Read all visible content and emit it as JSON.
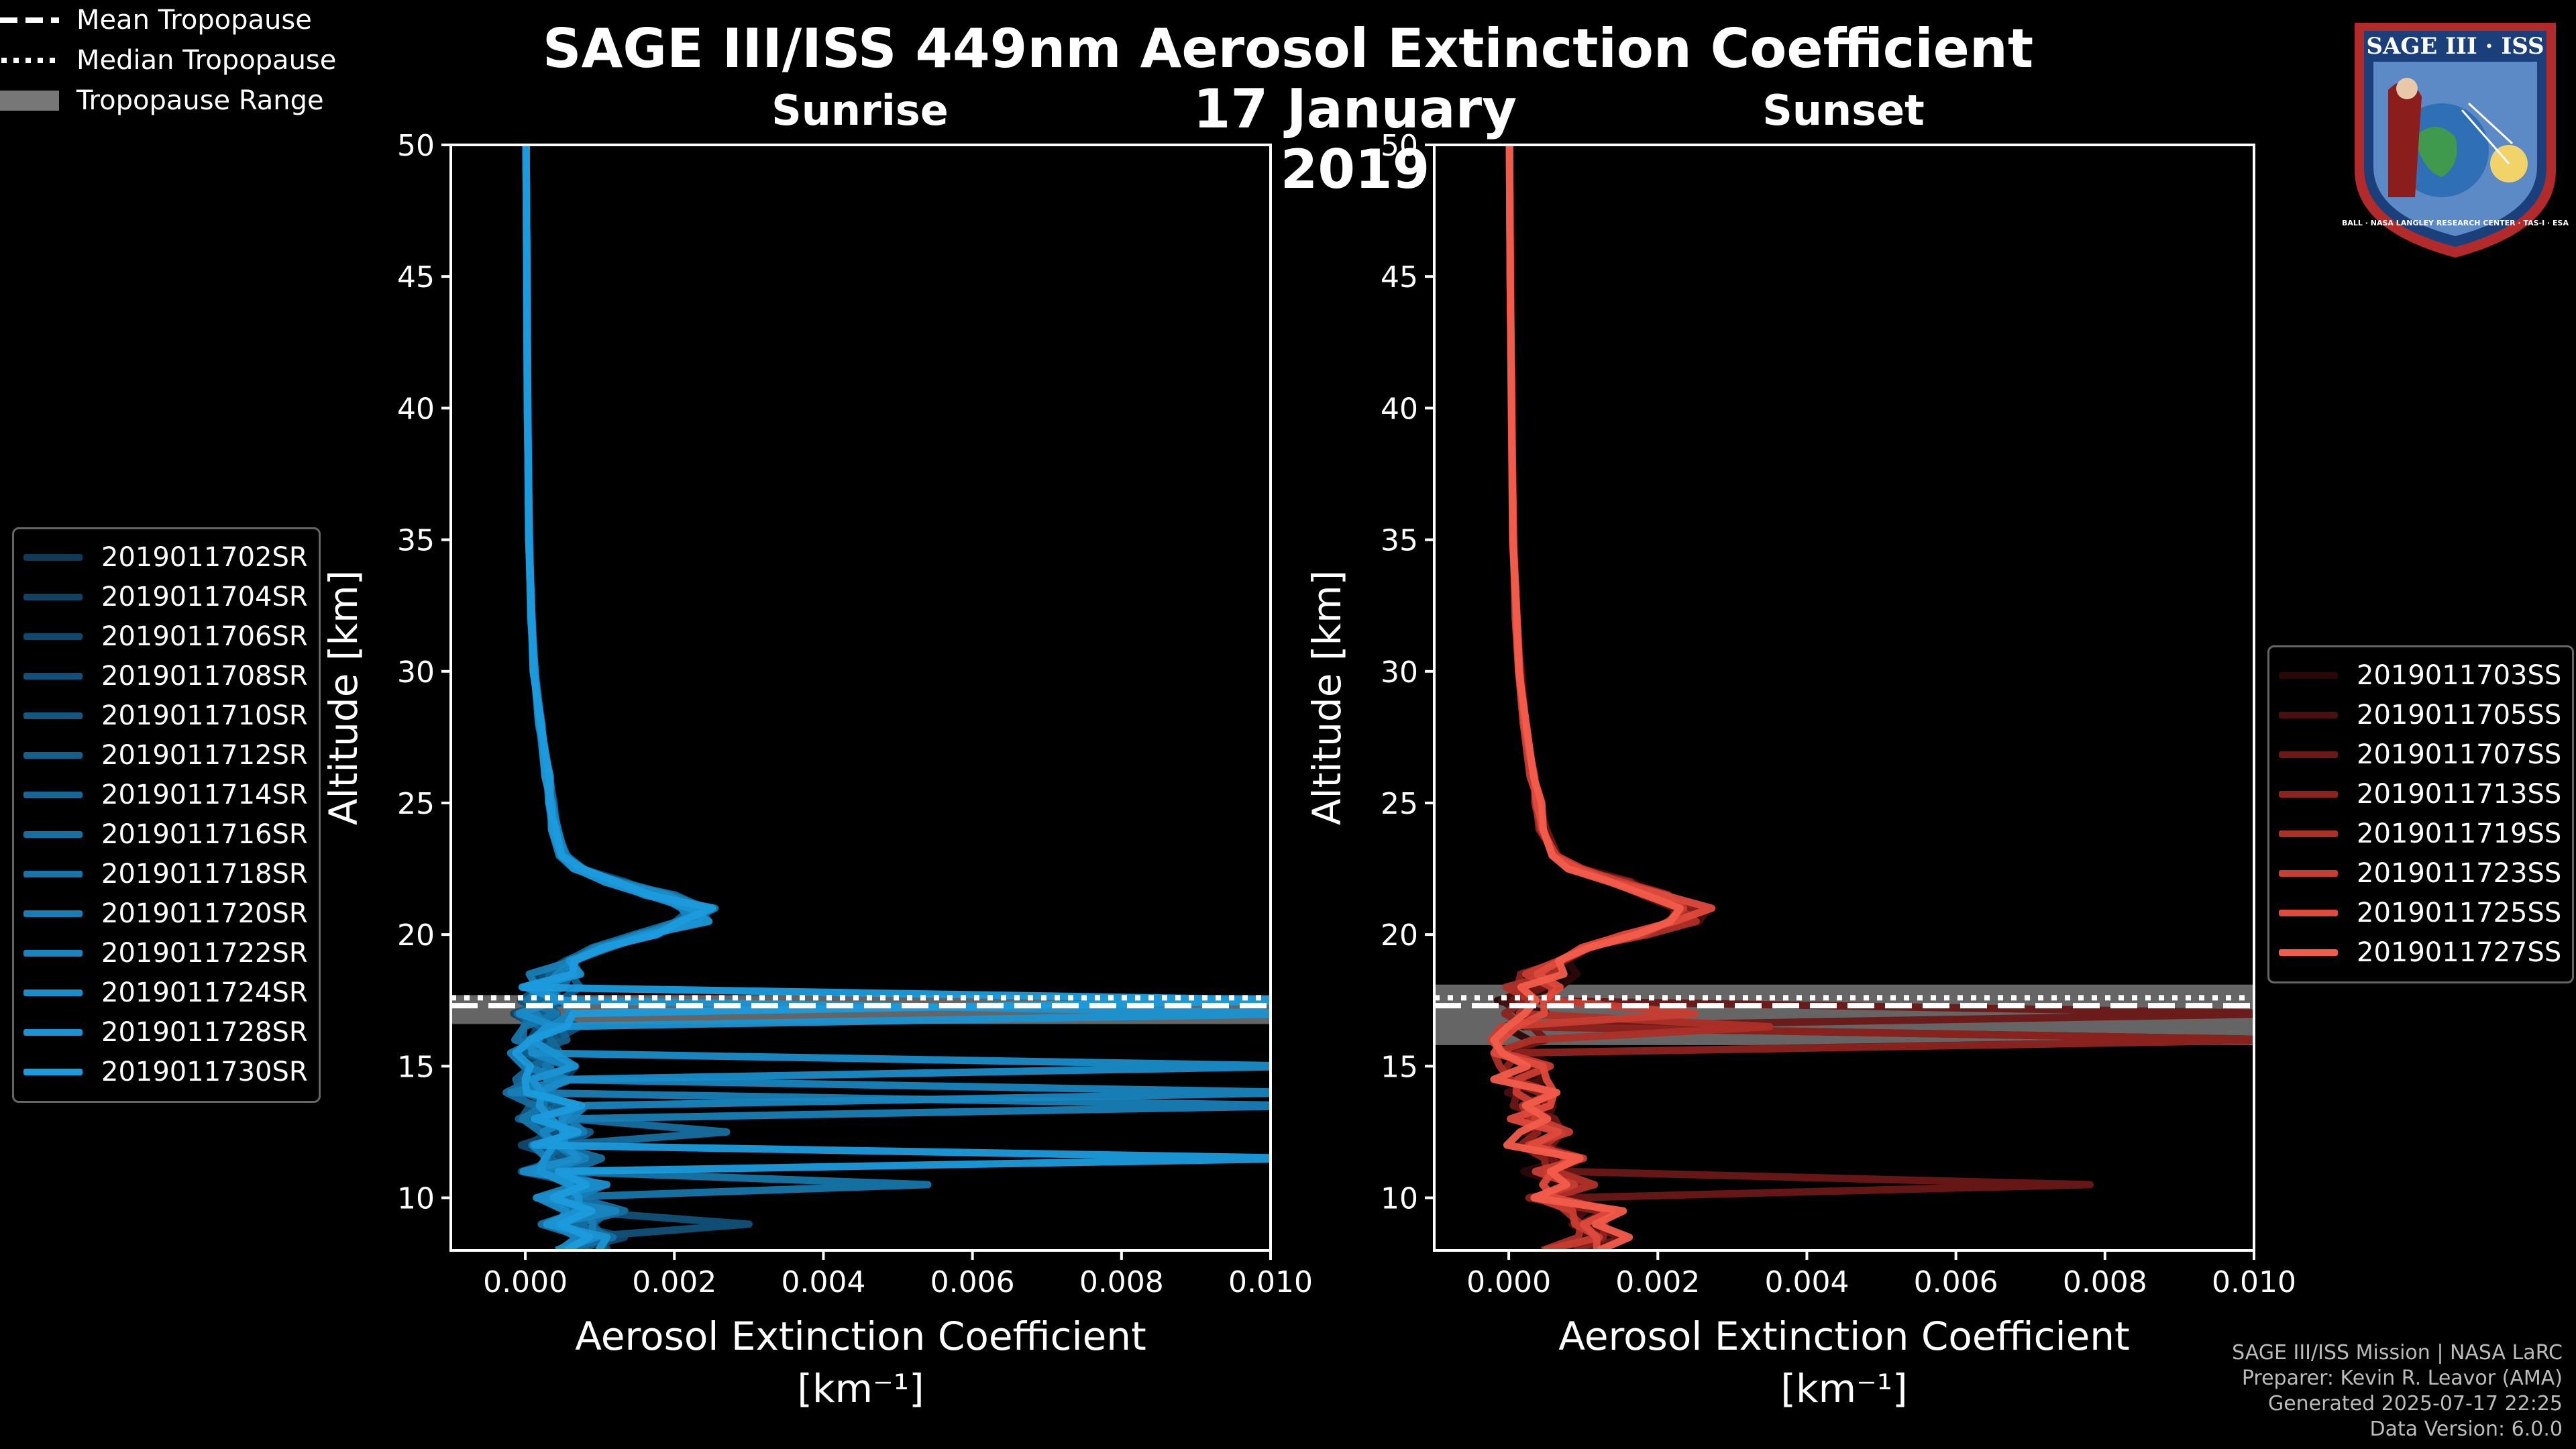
{
  "title": {
    "line1": "SAGE III/ISS 449nm Aerosol Extinction Coefficient",
    "line2": "17 January 2019"
  },
  "logo": {
    "text_top": "SAGE III · ISS",
    "text_ring": "BALL · NASA LANGLEY RESEARCH CENTER · TAS-I · ESA"
  },
  "colors": {
    "background": "#000000",
    "sunrise_series": [
      "#0e3a58",
      "#0f4263",
      "#10496e",
      "#115178",
      "#125882",
      "#13608d",
      "#146797",
      "#156fa1",
      "#1676ab",
      "#177eb5",
      "#1885bf",
      "#198cc9",
      "#1a93d3",
      "#1b9bdd"
    ],
    "sunset_series": [
      "#2a0808",
      "#4a1010",
      "#6b1816",
      "#8c231e",
      "#ad3027",
      "#c83d31",
      "#de4a3c",
      "#f25c4a"
    ],
    "tropopause_range": "#777777"
  },
  "chart_data": [
    {
      "type": "line",
      "panel_title": "Sunrise",
      "xlabel": "Aerosol Extinction Coefficient",
      "xunit": "[km⁻¹]",
      "ylabel": "Altitude [km]",
      "xlim": [
        -0.001,
        0.01
      ],
      "ylim": [
        8,
        50
      ],
      "xticks": [
        0.0,
        0.002,
        0.004,
        0.006,
        0.008,
        0.01
      ],
      "xtick_labels": [
        "0.000",
        "0.002",
        "0.004",
        "0.006",
        "0.008",
        "0.010"
      ],
      "yticks": [
        10,
        15,
        20,
        25,
        30,
        35,
        40,
        45,
        50
      ],
      "tropopause": {
        "mean": 17.3,
        "median": 17.6,
        "range": [
          16.6,
          17.7
        ]
      },
      "series_names": [
        "2019011702SR",
        "2019011704SR",
        "2019011706SR",
        "2019011708SR",
        "2019011710SR",
        "2019011712SR",
        "2019011714SR",
        "2019011716SR",
        "2019011718SR",
        "2019011720SR",
        "2019011722SR",
        "2019011724SR",
        "2019011728SR",
        "2019011730SR"
      ],
      "base_profile": {
        "altitude": [
          50,
          45,
          40,
          35,
          32,
          30,
          28,
          26,
          25,
          24,
          23,
          22.5,
          22,
          21.5,
          21,
          20.5,
          20,
          19.5,
          19,
          18.5,
          18,
          17.5,
          17,
          16.5,
          16,
          15.5,
          15,
          14.5,
          14,
          13.5,
          13,
          12.5,
          12,
          11.5,
          11,
          10.5,
          10,
          9.5,
          9,
          8.5,
          8
        ],
        "value": [
          1e-05,
          2e-05,
          3e-05,
          5e-05,
          8e-05,
          0.00012,
          0.0002,
          0.0003,
          0.00035,
          0.0004,
          0.0005,
          0.0007,
          0.0012,
          0.0018,
          0.0023,
          0.0022,
          0.0016,
          0.001,
          0.0006,
          0.0004,
          0.0003,
          0.0002,
          0.0002,
          0.0003,
          0.0002,
          0.0001,
          0.0003,
          0.0002,
          0.0001,
          0.0004,
          0.0002,
          0.0005,
          0.0003,
          0.0006,
          0.0003,
          0.0007,
          0.0004,
          0.0009,
          0.0005,
          0.001,
          0.0007
        ]
      },
      "spikes": [
        {
          "series": 13,
          "altitude": 17.5,
          "value": 0.0105
        },
        {
          "series": 12,
          "altitude": 17.0,
          "value": 0.0105
        },
        {
          "series": 11,
          "altitude": 14.8,
          "value": 0.0105
        },
        {
          "series": 10,
          "altitude": 14.1,
          "value": 0.0105
        },
        {
          "series": 9,
          "altitude": 13.5,
          "value": 0.0105
        },
        {
          "series": 13,
          "altitude": 11.5,
          "value": 0.0105
        },
        {
          "series": 8,
          "altitude": 10.6,
          "value": 0.0054
        },
        {
          "series": 7,
          "altitude": 12.5,
          "value": 0.0027
        },
        {
          "series": 3,
          "altitude": 9.1,
          "value": 0.003
        }
      ]
    },
    {
      "type": "line",
      "panel_title": "Sunset",
      "xlabel": "Aerosol Extinction Coefficient",
      "xunit": "[km⁻¹]",
      "ylabel": "Altitude [km]",
      "xlim": [
        -0.001,
        0.01
      ],
      "ylim": [
        8,
        50
      ],
      "xticks": [
        0.0,
        0.002,
        0.004,
        0.006,
        0.008,
        0.01
      ],
      "xtick_labels": [
        "0.000",
        "0.002",
        "0.004",
        "0.006",
        "0.008",
        "0.010"
      ],
      "yticks": [
        10,
        15,
        20,
        25,
        30,
        35,
        40,
        45,
        50
      ],
      "tropopause": {
        "mean": 17.3,
        "median": 17.6,
        "range": [
          15.8,
          18.1
        ]
      },
      "series_names": [
        "2019011703SS",
        "2019011705SS",
        "2019011707SS",
        "2019011713SS",
        "2019011719SS",
        "2019011723SS",
        "2019011725SS",
        "2019011727SS"
      ],
      "base_profile": {
        "altitude": [
          50,
          45,
          40,
          35,
          32,
          30,
          28,
          26,
          25,
          24,
          23,
          22.5,
          22,
          21.5,
          21,
          20.5,
          20,
          19.5,
          19,
          18.5,
          18,
          17.5,
          17,
          16.5,
          16,
          15.5,
          15,
          14.5,
          14,
          13.5,
          13,
          12.5,
          12,
          11.5,
          11,
          10.5,
          10,
          9.5,
          9,
          8.5,
          8
        ],
        "value": [
          1e-05,
          2e-05,
          4e-05,
          6e-05,
          0.0001,
          0.00015,
          0.00022,
          0.00032,
          0.0004,
          0.00045,
          0.0006,
          0.0009,
          0.0015,
          0.002,
          0.0025,
          0.0024,
          0.0017,
          0.0011,
          0.0007,
          0.0005,
          0.0003,
          0.0002,
          0.0001,
          0.0002,
          0.0001,
          5e-05,
          0.0002,
          0.0001,
          0.0003,
          0.0004,
          0.0002,
          0.0005,
          0.0003,
          0.0006,
          0.0004,
          0.0008,
          0.0005,
          0.0011,
          0.0009,
          0.0012,
          0.0008
        ]
      },
      "spikes": [
        {
          "series": 2,
          "altitude": 16.8,
          "value": 0.0105
        },
        {
          "series": 3,
          "altitude": 16.2,
          "value": 0.0105
        },
        {
          "series": 1,
          "altitude": 16.0,
          "value": 0.0105
        },
        {
          "series": 2,
          "altitude": 10.6,
          "value": 0.0078
        },
        {
          "series": 4,
          "altitude": 16.5,
          "value": 0.0035
        },
        {
          "series": 5,
          "altitude": 17.0,
          "value": 0.0025
        }
      ]
    }
  ],
  "tropopause_legend": {
    "mean": "Mean Tropopause",
    "median": "Median Tropopause",
    "range": "Tropopause Range"
  },
  "footer": {
    "line1": "SAGE III/ISS Mission | NASA LaRC",
    "line2": "Preparer: Kevin R. Leavor (AMA)",
    "line3": "Generated 2025-07-17 22:25",
    "line4": "Data Version: 6.0.0"
  }
}
